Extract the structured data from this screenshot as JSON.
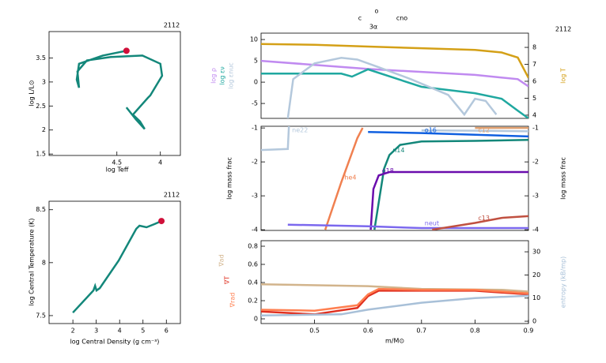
{
  "chart_data": [
    {
      "type": "line",
      "title": "2112",
      "xlabel": "log Teff",
      "ylabel": "log L/L⊙",
      "xlim": [
        5.28,
        3.77
      ],
      "ylim": [
        1.47,
        4.05
      ],
      "xticks": [
        4.5,
        4
      ],
      "yticks": [
        3.5,
        3,
        2.5,
        2,
        1.5
      ],
      "marker": "last",
      "marker_color": "#d0103a",
      "series": [
        {
          "color": "#13877a",
          "x": [
            4.39,
            4.28,
            4.18,
            4.235,
            4.316,
            4.144,
            4.116,
            3.98,
            4.0,
            4.207,
            4.571,
            4.844,
            4.953,
            4.935,
            4.962,
            4.935,
            4.662,
            4.39
          ],
          "values": [
            2.47,
            2.22,
            2.02,
            2.18,
            2.32,
            2.67,
            2.72,
            3.13,
            3.38,
            3.55,
            3.52,
            3.45,
            3.22,
            2.88,
            3.05,
            3.38,
            3.55,
            3.65
          ]
        }
      ]
    },
    {
      "type": "line",
      "title": "2112",
      "xlabel": "log Central Density (g cm⁻³)",
      "ylabel": "log Central Temperature (K)",
      "xlim": [
        0.98,
        6.6
      ],
      "ylim": [
        7.425,
        8.58
      ],
      "xticks": [
        2,
        3,
        4,
        5,
        6
      ],
      "yticks": [
        8.5,
        8,
        7.5
      ],
      "marker": "last",
      "marker_color": "#d0103a",
      "series": [
        {
          "color": "#13877a",
          "x": [
            2.0,
            2.88,
            2.95,
            3.01,
            3.15,
            3.96,
            4.71,
            4.85,
            5.15,
            5.49,
            5.79
          ],
          "values": [
            7.528,
            7.737,
            7.781,
            7.737,
            7.759,
            8.02,
            8.319,
            8.349,
            8.334,
            8.364,
            8.393
          ]
        }
      ]
    },
    {
      "type": "line",
      "title": "2112",
      "annotations": [
        "c",
        "o",
        "cno",
        "3α"
      ],
      "legend": "axis",
      "xlim": [
        0.4,
        0.9
      ],
      "ylim": [
        -8.5,
        11.5
      ],
      "yticks": [
        10,
        5,
        0,
        -5
      ],
      "y2lim": [
        3.81,
        8.84
      ],
      "y2ticks": [
        8,
        7,
        6,
        5,
        4
      ],
      "series": [
        {
          "name": "log ρ",
          "color": "#c08af0",
          "x": [
            0.4,
            0.6,
            0.8,
            0.88,
            0.9
          ],
          "values": [
            5,
            3.1,
            1.7,
            0.7,
            -1
          ]
        },
        {
          "name": "log εν",
          "color": "#20a8a0",
          "x": [
            0.4,
            0.55,
            0.57,
            0.6,
            0.7,
            0.8,
            0.85,
            0.88,
            0.9
          ],
          "values": [
            2,
            2,
            1.3,
            3,
            -1.1,
            -2.6,
            -3.9,
            -6.7,
            -8.5
          ]
        },
        {
          "name": "log εnuc",
          "color": "#b4c8dc",
          "x": [
            0.45,
            0.46,
            0.5,
            0.55,
            0.58,
            0.62,
            0.68,
            0.75,
            0.78,
            0.8,
            0.82,
            0.84
          ],
          "values": [
            -8.5,
            0.7,
            4.4,
            5.7,
            5.3,
            3.5,
            0.7,
            -3,
            -7.6,
            -3.9,
            -4.4,
            -7.6
          ]
        },
        {
          "name": "log T",
          "color": "#d4a017",
          "axis": "y2",
          "x": [
            0.4,
            0.5,
            0.6,
            0.7,
            0.8,
            0.85,
            0.88,
            0.9
          ],
          "values": [
            8.2,
            8.15,
            8.05,
            7.95,
            7.85,
            7.7,
            7.4,
            6.2
          ]
        }
      ]
    },
    {
      "type": "line",
      "ylabel": "log mass frac",
      "y2label": "log mass frac",
      "legend": "inline",
      "xlim": [
        0.4,
        0.9
      ],
      "ylim": [
        -4.02,
        -0.95
      ],
      "yticks": [
        -1,
        -2,
        -3,
        -4
      ],
      "y2lim": [
        -4.02,
        -0.95
      ],
      "y2ticks": [
        -1,
        -2,
        -3,
        -4
      ],
      "series": [
        {
          "name": "he4",
          "color": "#f08050",
          "x": [
            0.52,
            0.55,
            0.58,
            0.59
          ],
          "values": [
            -4,
            -2.6,
            -1.3,
            -1.0
          ]
        },
        {
          "name": "ne22",
          "color": "#b4c8dc",
          "x": [
            0.4,
            0.45,
            0.452,
            0.6,
            0.7,
            0.8,
            0.9
          ],
          "values": [
            -1.65,
            -1.62,
            -0.95,
            null,
            -1.07,
            -1.08,
            -1.1
          ]
        },
        {
          "name": "o16",
          "color": "#1060e0",
          "x": [
            0.6,
            0.7,
            0.8,
            0.9
          ],
          "values": [
            -1.12,
            -1.15,
            -1.2,
            -1.25
          ]
        },
        {
          "name": "c12",
          "color": "#e0a070",
          "x": [
            0.8,
            0.9
          ],
          "values": [
            -1.0,
            -1.0
          ]
        },
        {
          "name": "n14",
          "color": "#13877a",
          "x": [
            0.612,
            0.62,
            0.63,
            0.64,
            0.66,
            0.7,
            0.8,
            0.9
          ],
          "values": [
            -4,
            -3.2,
            -2.2,
            -1.8,
            -1.5,
            -1.4,
            -1.38,
            -1.35
          ]
        },
        {
          "name": "o18",
          "color": "#6a0dad",
          "x": [
            0.605,
            0.61,
            0.62,
            0.64,
            0.9
          ],
          "values": [
            -4,
            -2.8,
            -2.4,
            -2.3,
            -2.3
          ]
        },
        {
          "name": "neut",
          "color": "#7b68ee",
          "x": [
            0.45,
            0.6,
            0.7,
            0.8,
            0.9
          ],
          "values": [
            -3.85,
            -3.9,
            -3.95,
            -3.95,
            -3.95
          ]
        },
        {
          "name": "c13",
          "color": "#c05040",
          "x": [
            0.72,
            0.8,
            0.85,
            0.9
          ],
          "values": [
            -4,
            -3.8,
            -3.65,
            -3.6
          ]
        }
      ]
    },
    {
      "type": "line",
      "xlabel": "m/M⊙",
      "legend": "axis",
      "xlim": [
        0.4,
        0.9
      ],
      "ylim": [
        -0.052,
        0.861
      ],
      "xticks": [
        0.5,
        0.6,
        0.7,
        0.8,
        0.9
      ],
      "yticks": [
        0.8,
        0.6,
        0.4,
        0.2,
        0
      ],
      "y2lim": [
        -1.0,
        34.8
      ],
      "y2ticks": [
        30,
        20,
        10,
        0
      ],
      "series": [
        {
          "name": "∇ad",
          "color": "#d2b48c",
          "x": [
            0.4,
            0.6,
            0.7,
            0.85,
            0.9
          ],
          "values": [
            0.38,
            0.36,
            0.33,
            0.32,
            0.3
          ]
        },
        {
          "name": "∇T",
          "color": "#e03020",
          "x": [
            0.4,
            0.5,
            0.58,
            0.6,
            0.62,
            0.7,
            0.8,
            0.9
          ],
          "values": [
            0.08,
            0.05,
            0.12,
            0.25,
            0.31,
            0.31,
            0.31,
            0.27
          ]
        },
        {
          "name": "∇rad",
          "color": "#ff7f50",
          "x": [
            0.4,
            0.5,
            0.58,
            0.6,
            0.62,
            0.7,
            0.8,
            0.9
          ],
          "values": [
            0.1,
            0.09,
            0.15,
            0.27,
            0.33,
            0.32,
            0.32,
            0.28
          ]
        },
        {
          "name": "entropy (kB/mp)",
          "color": "#a8c0d8",
          "axis": "y2",
          "x": [
            0.4,
            0.55,
            0.6,
            0.7,
            0.8,
            0.9
          ],
          "values": [
            2.5,
            3,
            5,
            8,
            10,
            11
          ]
        }
      ]
    }
  ]
}
